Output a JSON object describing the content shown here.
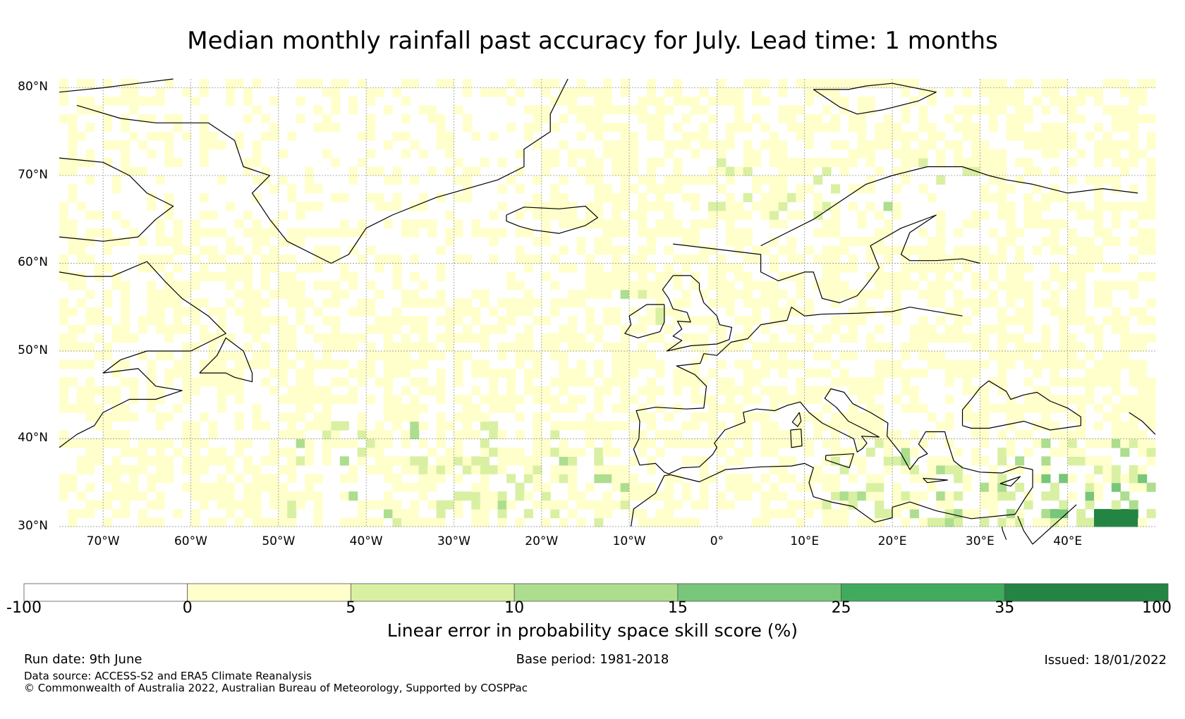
{
  "title": "Median monthly rainfall past accuracy for July. Lead time: 1 months",
  "map": {
    "lon_range": [
      -75,
      50
    ],
    "lat_range": [
      30,
      81
    ],
    "lat_ticks": [
      {
        "value": 80,
        "label": "80°N"
      },
      {
        "value": 70,
        "label": "70°N"
      },
      {
        "value": 60,
        "label": "60°N"
      },
      {
        "value": 50,
        "label": "50°N"
      },
      {
        "value": 40,
        "label": "40°N"
      },
      {
        "value": 30,
        "label": "30°N"
      }
    ],
    "lon_ticks": [
      {
        "value": -70,
        "label": "70°W"
      },
      {
        "value": -60,
        "label": "60°W"
      },
      {
        "value": -50,
        "label": "50°W"
      },
      {
        "value": -40,
        "label": "40°W"
      },
      {
        "value": -30,
        "label": "30°W"
      },
      {
        "value": -20,
        "label": "20°W"
      },
      {
        "value": -10,
        "label": "10°W"
      },
      {
        "value": 0,
        "label": "0°"
      },
      {
        "value": 10,
        "label": "10°E"
      },
      {
        "value": 20,
        "label": "20°E"
      },
      {
        "value": 30,
        "label": "30°E"
      },
      {
        "value": 40,
        "label": "40°E"
      }
    ],
    "gridlines": true
  },
  "colorbar": {
    "bins": [
      {
        "from": -100,
        "to": 0,
        "color": "#ffffff"
      },
      {
        "from": 0,
        "to": 5,
        "color": "#ffffcc"
      },
      {
        "from": 5,
        "to": 10,
        "color": "#d9f0a3"
      },
      {
        "from": 10,
        "to": 15,
        "color": "#addd8e"
      },
      {
        "from": 15,
        "to": 25,
        "color": "#78c679"
      },
      {
        "from": 25,
        "to": 35,
        "color": "#41ab5d"
      },
      {
        "from": 35,
        "to": 100,
        "color": "#238443"
      }
    ],
    "tick_labels": [
      "-100",
      "0",
      "5",
      "10",
      "15",
      "25",
      "35",
      "100"
    ],
    "label": "Linear error in probability space skill score (%)"
  },
  "footer": {
    "run_date": "Run date: 9th June",
    "base_period": "Base period: 1981-2018",
    "issued": "Issued: 18/01/2022",
    "data_source": "Data source: ACCESS-S2 and ERA5 Climate Reanalysis",
    "copyright": "© Commonwealth of Australia 2022, Australian Bureau of Meteorology, Supported by COSPPac"
  }
}
